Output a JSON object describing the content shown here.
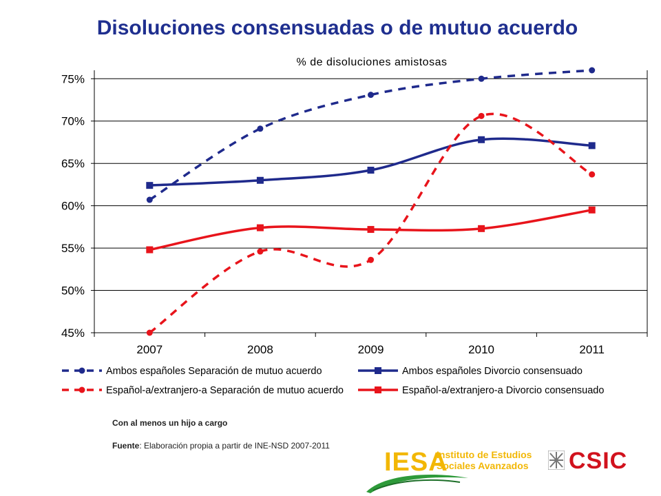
{
  "title": "Disoluciones consensuadas o de mutuo acuerdo",
  "chart_data": {
    "type": "line",
    "title": "% de disoluciones amistosas",
    "xlabel": "",
    "ylabel": "",
    "categories": [
      "2007",
      "2008",
      "2009",
      "2010",
      "2011"
    ],
    "ylim": [
      45,
      76
    ],
    "yticks": [
      45,
      50,
      55,
      60,
      65,
      70,
      75
    ],
    "ytick_labels": [
      "45%",
      "50%",
      "55%",
      "60%",
      "65%",
      "70%",
      "75%"
    ],
    "grid": true,
    "legend_position": "bottom",
    "series": [
      {
        "name": "Ambos españoles Separación de mutuo acuerdo",
        "values": [
          60.7,
          69.1,
          73.1,
          75.0,
          76.0
        ],
        "color": "#1f2a8c",
        "style": "dashed",
        "marker": "circle"
      },
      {
        "name": "Ambos españoles Divorcio consensuado",
        "values": [
          62.4,
          63.0,
          64.2,
          67.8,
          67.1
        ],
        "color": "#1f2a8c",
        "style": "solid",
        "marker": "square"
      },
      {
        "name": "Español-a/extranjero-a Separación de mutuo acuerdo",
        "values": [
          45.0,
          54.6,
          53.6,
          70.6,
          63.7
        ],
        "color": "#e8141b",
        "style": "dashed",
        "marker": "circle"
      },
      {
        "name": "Español-a/extranjero-a Divorcio consensuado",
        "values": [
          54.8,
          57.4,
          57.2,
          57.3,
          59.5
        ],
        "color": "#e8141b",
        "style": "solid",
        "marker": "square"
      }
    ]
  },
  "notes": {
    "hijo": "Con al menos un hijo a cargo",
    "fuente_label": "Fuente",
    "fuente_text": ": Elaboración propia a partir de INE-NSD 2007-2011"
  },
  "logos": {
    "iesa_word": "IESA",
    "iesa_line1": "Instituto de Estudios",
    "iesa_line2": "Sociales Avanzados",
    "iesa_color": "#f2b705",
    "csic_word": "CSIC",
    "csic_color": "#d1121d"
  }
}
